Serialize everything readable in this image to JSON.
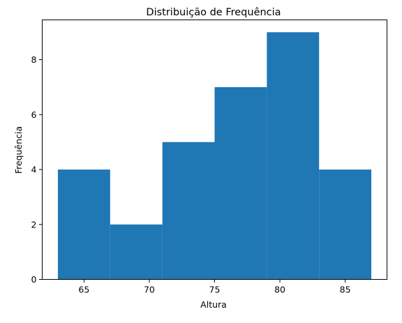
{
  "chart_data": {
    "type": "bar",
    "title": "Distribuição de Frequência",
    "xlabel": "Altura",
    "ylabel": "Frequência",
    "bins": [
      {
        "start": 63,
        "end": 67,
        "value": 4
      },
      {
        "start": 67,
        "end": 71,
        "value": 2
      },
      {
        "start": 71,
        "end": 75,
        "value": 5
      },
      {
        "start": 75,
        "end": 79,
        "value": 7
      },
      {
        "start": 79,
        "end": 83,
        "value": 9
      },
      {
        "start": 83,
        "end": 87,
        "value": 4
      }
    ],
    "xlim": [
      61.8,
      88.2
    ],
    "ylim": [
      0,
      9.45
    ],
    "xticks": [
      65,
      70,
      75,
      80,
      85
    ],
    "yticks": [
      0,
      2,
      4,
      6,
      8
    ],
    "bar_color": "#1f77b4",
    "grid": false
  }
}
